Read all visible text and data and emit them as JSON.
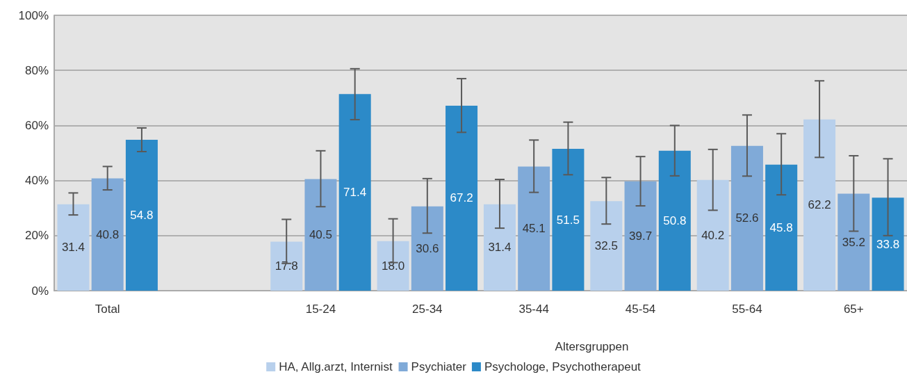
{
  "chart_data": {
    "type": "bar",
    "xlabel": "Altersgruppen",
    "categories": [
      "Total",
      null,
      "15-24",
      "25-34",
      "35-44",
      "45-54",
      "55-64",
      "65+"
    ],
    "series": [
      {
        "name": "HA, Allg.arzt, Internist",
        "color": "#b8d0ec",
        "values": [
          31.4,
          null,
          17.8,
          18.0,
          31.4,
          32.5,
          40.2,
          62.2
        ],
        "value_labels": [
          "31.4",
          null,
          "17.8",
          "18.0",
          "31.4",
          "32.5",
          "40.2",
          "62.2"
        ],
        "errors": [
          [
            27.5,
            35.5
          ],
          null,
          [
            9.9,
            25.9
          ],
          [
            10.2,
            26.1
          ],
          [
            22.7,
            40.4
          ],
          [
            24.2,
            41.1
          ],
          [
            29.2,
            51.3
          ],
          [
            48.4,
            76.2
          ]
        ]
      },
      {
        "name": "Psychiater",
        "color": "#80aad8",
        "values": [
          40.8,
          null,
          40.5,
          30.6,
          45.1,
          39.7,
          52.6,
          35.2
        ],
        "value_labels": [
          "40.8",
          null,
          "40.5",
          "30.6",
          "45.1",
          "39.7",
          "52.6",
          "35.2"
        ],
        "errors": [
          [
            36.6,
            45.1
          ],
          null,
          [
            30.5,
            50.8
          ],
          [
            20.9,
            40.7
          ],
          [
            35.7,
            54.7
          ],
          [
            30.8,
            48.7
          ],
          [
            41.6,
            63.8
          ],
          [
            21.6,
            49.0
          ]
        ]
      },
      {
        "name": "Psychologe, Psychotherapeut",
        "color": "#2c8ac8",
        "values": [
          54.8,
          null,
          71.4,
          67.2,
          51.5,
          50.8,
          45.8,
          33.8
        ],
        "value_labels": [
          "54.8",
          null,
          "71.4",
          "67.2",
          "51.5",
          "50.8",
          "45.8",
          "33.8"
        ],
        "errors": [
          [
            50.5,
            59.1
          ],
          null,
          [
            62.1,
            80.6
          ],
          [
            57.5,
            77.0
          ],
          [
            42.1,
            61.2
          ],
          [
            41.7,
            60.0
          ],
          [
            34.8,
            57.0
          ],
          [
            20.0,
            47.9
          ]
        ]
      }
    ],
    "ylim": [
      0,
      100
    ],
    "yticks": [
      {
        "value": 0,
        "label": "0%"
      },
      {
        "value": 20,
        "label": "20%"
      },
      {
        "value": 40,
        "label": "40%"
      },
      {
        "value": 60,
        "label": "60%"
      },
      {
        "value": 80,
        "label": "80%"
      },
      {
        "value": 100,
        "label": "100%"
      }
    ],
    "grid": "y",
    "legend": "bottom"
  }
}
